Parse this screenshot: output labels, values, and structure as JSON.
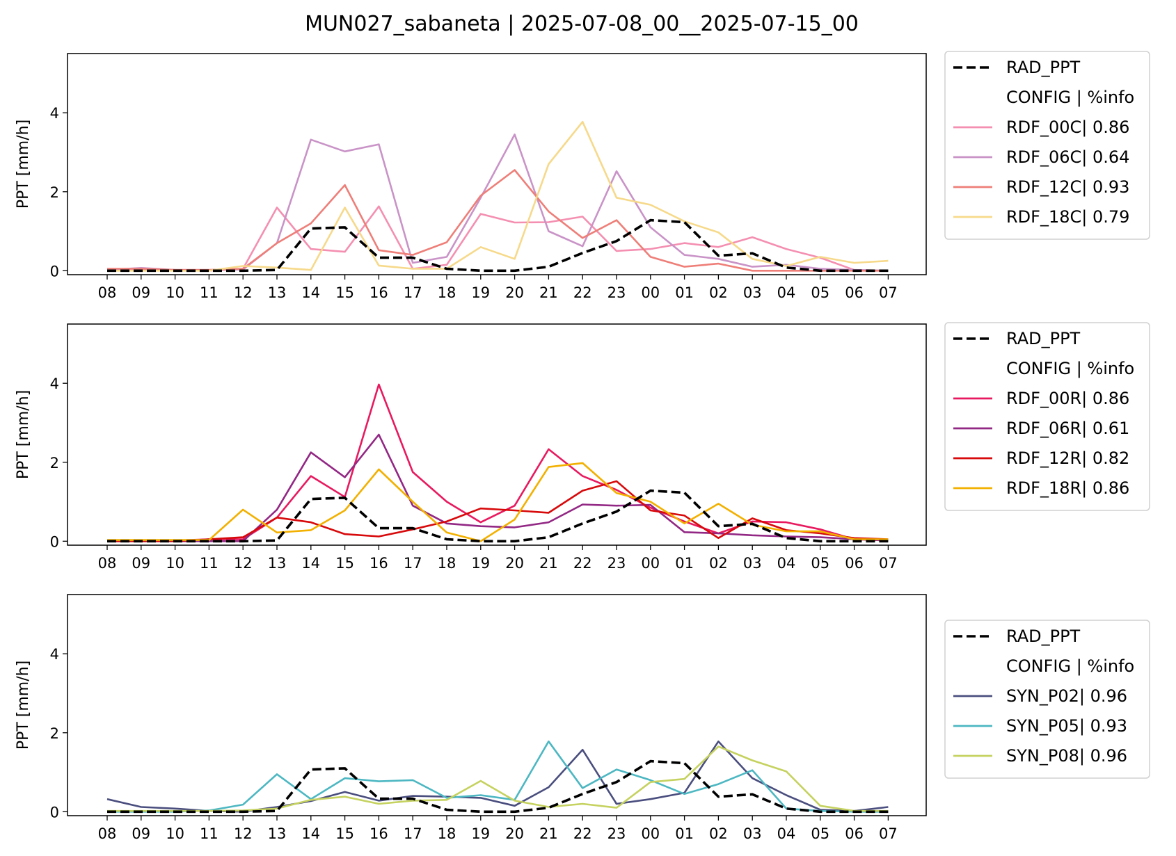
{
  "figure": {
    "title": "MUN027_sabaneta | 2025-07-08_00__2025-07-15_00"
  },
  "chart_data": [
    {
      "type": "line",
      "ylabel": "PPT [mm/h]",
      "ylim": [
        -0.1,
        5.5
      ],
      "yticks": [
        0,
        2,
        4
      ],
      "categories": [
        "08",
        "09",
        "10",
        "11",
        "12",
        "13",
        "14",
        "15",
        "16",
        "17",
        "18",
        "19",
        "20",
        "21",
        "22",
        "23",
        "00",
        "01",
        "02",
        "03",
        "04",
        "05",
        "06",
        "07"
      ],
      "legend_header": "CONFIG  | %info",
      "legend_position": "outside-right",
      "reference": {
        "name": "RAD_PPT",
        "color": "#000000",
        "values": [
          0,
          0,
          0,
          0,
          0,
          0.02,
          1.07,
          1.1,
          0.33,
          0.33,
          0.05,
          0,
          0,
          0.1,
          0.45,
          0.75,
          1.28,
          1.23,
          0.38,
          0.44,
          0.08,
          0,
          0,
          0
        ]
      },
      "series": [
        {
          "name": "RDF_00C| 0.86",
          "color": "#f48fb1",
          "values": [
            0.02,
            0.02,
            0.02,
            0,
            0.05,
            1.6,
            0.55,
            0.48,
            1.63,
            0.05,
            0.15,
            1.44,
            1.22,
            1.23,
            1.37,
            0.5,
            0.55,
            0.7,
            0.6,
            0.85,
            0.55,
            0.33,
            0.02,
            0
          ]
        },
        {
          "name": "RDF_06C| 0.64",
          "color": "#c993c7",
          "values": [
            0.02,
            0.07,
            0.02,
            0.02,
            0.03,
            0.7,
            3.32,
            3.02,
            3.2,
            0.2,
            0.35,
            1.85,
            3.45,
            1,
            0.62,
            2.52,
            1.1,
            0.4,
            0.3,
            0.1,
            0.15,
            0.05,
            0.02,
            0
          ]
        },
        {
          "name": "RDF_12C| 0.93",
          "color": "#ee7e78",
          "values": [
            0.05,
            0.05,
            0.02,
            0.02,
            0.05,
            0.7,
            1.2,
            2.17,
            0.52,
            0.4,
            0.72,
            1.9,
            2.55,
            1.5,
            0.83,
            1.28,
            0.35,
            0.1,
            0.18,
            0,
            0,
            0,
            0,
            0
          ]
        },
        {
          "name": "RDF_18C| 0.79",
          "color": "#f6d98a",
          "values": [
            0,
            0,
            0,
            0,
            0.12,
            0.08,
            0.02,
            1.6,
            0.13,
            0.05,
            0.05,
            0.6,
            0.3,
            2.7,
            3.77,
            1.85,
            1.67,
            1.25,
            0.97,
            0.3,
            0.12,
            0.35,
            0.2,
            0.25
          ]
        }
      ]
    },
    {
      "type": "line",
      "ylabel": "PPT [mm/h]",
      "ylim": [
        -0.1,
        5.5
      ],
      "yticks": [
        0,
        2,
        4
      ],
      "categories": [
        "08",
        "09",
        "10",
        "11",
        "12",
        "13",
        "14",
        "15",
        "16",
        "17",
        "18",
        "19",
        "20",
        "21",
        "22",
        "23",
        "00",
        "01",
        "02",
        "03",
        "04",
        "05",
        "06",
        "07"
      ],
      "legend_header": "CONFIG  | %info",
      "legend_position": "outside-right",
      "reference": {
        "name": "RAD_PPT",
        "color": "#000000",
        "values": [
          0,
          0,
          0,
          0,
          0,
          0.02,
          1.07,
          1.1,
          0.33,
          0.33,
          0.05,
          0,
          0,
          0.1,
          0.45,
          0.75,
          1.28,
          1.23,
          0.38,
          0.44,
          0.08,
          0,
          0,
          0
        ]
      },
      "series": [
        {
          "name": "RDF_00R| 0.86",
          "color": "#e8195f",
          "values": [
            0.02,
            0.02,
            0.02,
            0.05,
            0.05,
            0.6,
            1.65,
            1.12,
            3.97,
            1.75,
            1,
            0.48,
            0.9,
            2.33,
            1.65,
            1.3,
            0.85,
            0.5,
            0.2,
            0.5,
            0.48,
            0.3,
            0.05,
            0.02
          ]
        },
        {
          "name": "RDF_06R| 0.61",
          "color": "#922784",
          "values": [
            0,
            0,
            0,
            0,
            0,
            0.8,
            2.25,
            1.62,
            2.7,
            0.9,
            0.45,
            0.38,
            0.35,
            0.48,
            0.93,
            0.9,
            0.92,
            0.23,
            0.2,
            0.15,
            0.12,
            0.1,
            0.05,
            0.02
          ]
        },
        {
          "name": "RDF_12R| 0.82",
          "color": "#d7090b",
          "values": [
            0,
            0,
            0,
            0.05,
            0.1,
            0.6,
            0.48,
            0.18,
            0.12,
            0.3,
            0.5,
            0.83,
            0.78,
            0.72,
            1.28,
            1.52,
            0.78,
            0.65,
            0.08,
            0.58,
            0.28,
            0.2,
            0.08,
            0.05
          ]
        },
        {
          "name": "RDF_18R| 0.86",
          "color": "#f2b000",
          "values": [
            0.03,
            0.03,
            0.03,
            0.03,
            0.8,
            0.22,
            0.28,
            0.78,
            1.82,
            1,
            0.22,
            0,
            0.55,
            1.88,
            1.98,
            1.22,
            1,
            0.45,
            0.95,
            0.42,
            0.25,
            0.25,
            0.05,
            0.05
          ]
        }
      ]
    },
    {
      "type": "line",
      "ylabel": "PPT [mm/h]",
      "ylim": [
        -0.1,
        5.5
      ],
      "yticks": [
        0,
        2,
        4
      ],
      "categories": [
        "08",
        "09",
        "10",
        "11",
        "12",
        "13",
        "14",
        "15",
        "16",
        "17",
        "18",
        "19",
        "20",
        "21",
        "22",
        "23",
        "00",
        "01",
        "02",
        "03",
        "04",
        "05",
        "06",
        "07"
      ],
      "legend_header": "CONFIG  | %info",
      "legend_position": "outside-right",
      "reference": {
        "name": "RAD_PPT",
        "color": "#000000",
        "values": [
          0,
          0,
          0,
          0,
          0,
          0.02,
          1.07,
          1.1,
          0.33,
          0.33,
          0.05,
          0,
          0,
          0.1,
          0.45,
          0.75,
          1.28,
          1.23,
          0.38,
          0.44,
          0.08,
          0,
          0,
          0
        ]
      },
      "series": [
        {
          "name": "SYN_P02| 0.96",
          "color": "#4a4e7e",
          "values": [
            0.32,
            0.12,
            0.08,
            0.02,
            0,
            0.12,
            0.27,
            0.5,
            0.28,
            0.4,
            0.38,
            0.35,
            0.15,
            0.62,
            1.57,
            0.2,
            0.32,
            0.48,
            1.78,
            0.85,
            0.42,
            0.05,
            0.02,
            0.12
          ]
        },
        {
          "name": "SYN_P05| 0.93",
          "color": "#4cb7c2",
          "values": [
            0,
            0,
            0,
            0.03,
            0.18,
            0.95,
            0.32,
            0.85,
            0.77,
            0.8,
            0.35,
            0.42,
            0.3,
            1.78,
            0.6,
            1.07,
            0.8,
            0.45,
            0.7,
            1.05,
            0.08,
            0.02,
            0,
            0
          ]
        },
        {
          "name": "SYN_P08| 0.96",
          "color": "#c5d25f",
          "values": [
            0.02,
            0.02,
            0.02,
            0.02,
            0.03,
            0.08,
            0.3,
            0.38,
            0.2,
            0.28,
            0.3,
            0.78,
            0.28,
            0.12,
            0.2,
            0.1,
            0.75,
            0.83,
            1.65,
            1.3,
            1.02,
            0.15,
            0.02,
            0.02
          ]
        }
      ]
    }
  ]
}
